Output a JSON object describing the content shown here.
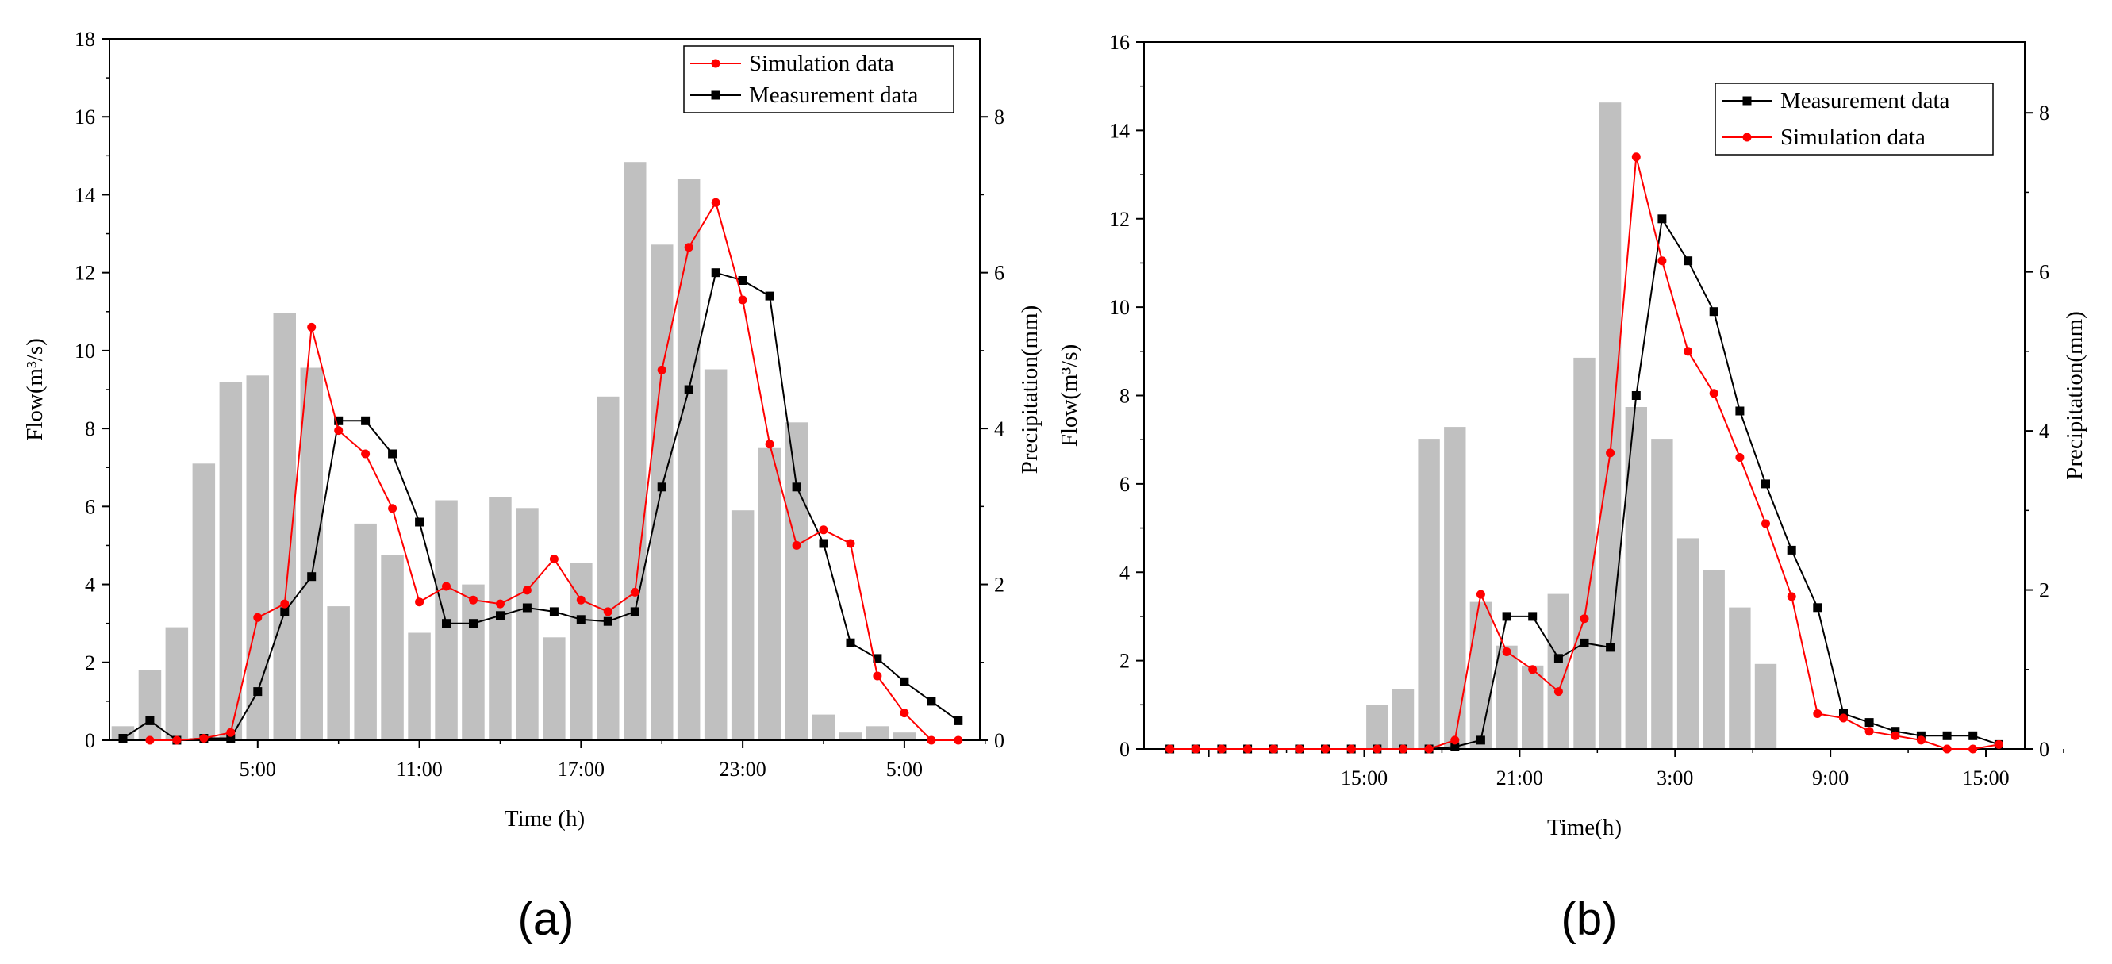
{
  "colors": {
    "simulation": "#ff0000",
    "measurement": "#000000",
    "precipitation": "#c0c0c0"
  },
  "chart_data": [
    {
      "type": "bar+line",
      "caption": "(a)",
      "xlabel": "Time (h)",
      "ylabel": "Flow(m³/s)",
      "y2label": "Precipitation(mm)",
      "ylim": [
        0,
        18
      ],
      "y2lim": [
        0,
        9
      ],
      "yticks": [
        "0",
        "2",
        "4",
        "6",
        "8",
        "10",
        "12",
        "14",
        "16",
        "18"
      ],
      "y2ticks": [
        "0",
        "2",
        "4",
        "6",
        "8"
      ],
      "xlim": [
        -0.5,
        31.8
      ],
      "xticks": [
        {
          "x": 5,
          "label": "5:00"
        },
        {
          "x": 11,
          "label": "11:00"
        },
        {
          "x": 17,
          "label": "17:00"
        },
        {
          "x": 23,
          "label": "23:00"
        },
        {
          "x": 29,
          "label": "5:00"
        }
      ],
      "legend": [
        "Simulation data",
        "Measurement data"
      ],
      "legend_position": "top-right",
      "precipitation": [
        0.18,
        0.9,
        1.45,
        3.55,
        4.6,
        4.68,
        5.48,
        4.78,
        1.72,
        2.78,
        2.38,
        1.38,
        3.08,
        2.0,
        3.12,
        2.98,
        1.32,
        2.27,
        4.41,
        7.42,
        6.36,
        7.2,
        4.76,
        2.95,
        3.75,
        4.08,
        0.33,
        0.1,
        0.18,
        0.1
      ],
      "series": [
        {
          "name": "Measurement data",
          "marker": "square",
          "x": [
            0,
            1,
            2,
            3,
            4,
            5,
            6,
            7,
            8,
            9,
            10,
            11,
            12,
            13,
            14,
            15,
            16,
            17,
            18,
            19,
            20,
            21,
            22,
            23,
            24,
            25,
            26,
            27,
            28,
            29,
            30,
            31
          ],
          "values": [
            0.05,
            0.5,
            0.0,
            0.05,
            0.05,
            1.25,
            3.3,
            4.2,
            8.2,
            8.2,
            7.35,
            5.6,
            3.0,
            3.0,
            3.2,
            3.4,
            3.3,
            3.1,
            3.05,
            3.3,
            6.5,
            9.0,
            12.0,
            11.8,
            11.4,
            6.5,
            5.05,
            2.5,
            2.1,
            1.5,
            1.0,
            0.5
          ]
        },
        {
          "name": "Simulation data",
          "marker": "circle",
          "x": [
            1,
            2,
            3,
            4,
            5,
            6,
            7,
            8,
            9,
            10,
            11,
            12,
            13,
            14,
            15,
            16,
            17,
            18,
            19,
            20,
            21,
            22,
            23,
            24,
            25,
            26,
            27,
            28,
            29,
            30,
            31
          ],
          "values": [
            0.0,
            0.0,
            0.05,
            0.2,
            3.15,
            3.5,
            10.6,
            7.95,
            7.35,
            5.95,
            3.55,
            3.95,
            3.6,
            3.5,
            3.85,
            4.65,
            3.6,
            3.3,
            3.8,
            9.5,
            12.65,
            13.8,
            11.3,
            7.6,
            5.0,
            5.4,
            5.05,
            1.65,
            0.7,
            0.0,
            0.0
          ]
        }
      ]
    },
    {
      "type": "bar+line",
      "caption": "(b)",
      "xlabel": "Time(h)",
      "ylabel": "Flow(m³/s)",
      "y2label": "Precipitation(mm)",
      "ylim": [
        0,
        16
      ],
      "y2lim": [
        0,
        8.89
      ],
      "yticks": [
        "0",
        "2",
        "4",
        "6",
        "8",
        "10",
        "12",
        "14",
        "16"
      ],
      "y2ticks": [
        "0",
        "2",
        "4",
        "6",
        "8"
      ],
      "xlim": [
        0,
        34
      ],
      "xticks": [
        {
          "x": 2.5,
          "label": ""
        },
        {
          "x": 8.5,
          "label": "15:00"
        },
        {
          "x": 14.5,
          "label": "21:00"
        },
        {
          "x": 20.5,
          "label": "3:00"
        },
        {
          "x": 26.5,
          "label": "9:00"
        },
        {
          "x": 32.5,
          "label": "15:00"
        }
      ],
      "legend": [
        "Measurement data",
        "Simulation data"
      ],
      "legend_position": "top-right",
      "precipitation": [
        0,
        0,
        0,
        0,
        0,
        0,
        0,
        0,
        0,
        0.55,
        0.75,
        3.9,
        4.05,
        1.85,
        1.3,
        1.05,
        1.95,
        4.92,
        8.13,
        4.3,
        3.9,
        2.65,
        2.25,
        1.78,
        1.07,
        0,
        0,
        0,
        0,
        0,
        0,
        0,
        0,
        0
      ],
      "series": [
        {
          "name": "Measurement data",
          "marker": "square",
          "x": [
            1,
            2,
            3,
            4,
            5,
            6,
            7,
            8,
            9,
            10,
            11,
            12,
            13,
            14,
            15,
            16,
            17,
            18,
            19,
            20,
            21,
            22,
            23,
            24,
            25,
            26,
            27,
            28,
            29,
            30,
            31,
            32,
            33
          ],
          "values": [
            0,
            0,
            0,
            0,
            0,
            0,
            0,
            0,
            0,
            0,
            0,
            0.05,
            0.2,
            3.0,
            3.0,
            2.05,
            2.4,
            2.3,
            8.0,
            12.0,
            11.05,
            9.9,
            7.65,
            6.0,
            4.5,
            3.2,
            0.8,
            0.6,
            0.4,
            0.3,
            0.3,
            0.3,
            0.1
          ]
        },
        {
          "name": "Simulation data",
          "marker": "circle",
          "x": [
            1,
            2,
            3,
            4,
            5,
            6,
            7,
            8,
            9,
            10,
            11,
            12,
            13,
            14,
            15,
            16,
            17,
            18,
            19,
            20,
            21,
            22,
            23,
            24,
            25,
            26,
            27,
            28,
            29,
            30,
            31,
            32,
            33
          ],
          "values": [
            0,
            0,
            0,
            0,
            0,
            0,
            0,
            0,
            0,
            0,
            0,
            0.2,
            3.5,
            2.2,
            1.8,
            1.3,
            2.95,
            6.7,
            13.4,
            11.05,
            9.0,
            8.05,
            6.6,
            5.1,
            3.45,
            0.8,
            0.7,
            0.4,
            0.3,
            0.2,
            0.0,
            0.0,
            0.1
          ]
        }
      ]
    }
  ]
}
